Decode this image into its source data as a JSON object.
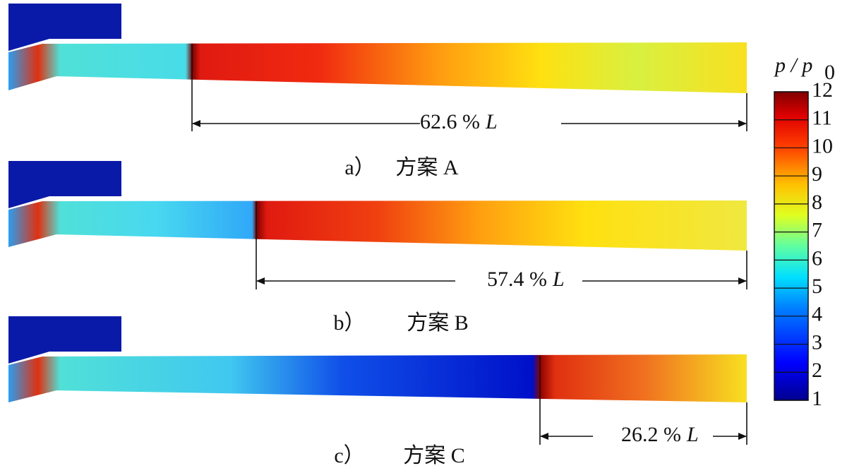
{
  "panels": [
    {
      "caption_label": "a）",
      "caption": "方案 A",
      "dimension": "62.6 %",
      "dimension_symbol": "L"
    },
    {
      "caption_label": "b）",
      "caption": "方案 B",
      "dimension": "57.4 %",
      "dimension_symbol": "L"
    },
    {
      "caption_label": "c）",
      "caption": "方案 C",
      "dimension": "26.2 %",
      "dimension_symbol": "L"
    }
  ],
  "colorbar": {
    "title": "p / p",
    "title_subscript": "0",
    "ticks": [
      1,
      2,
      3,
      4,
      5,
      6,
      7,
      8,
      9,
      10,
      11,
      12
    ]
  }
}
